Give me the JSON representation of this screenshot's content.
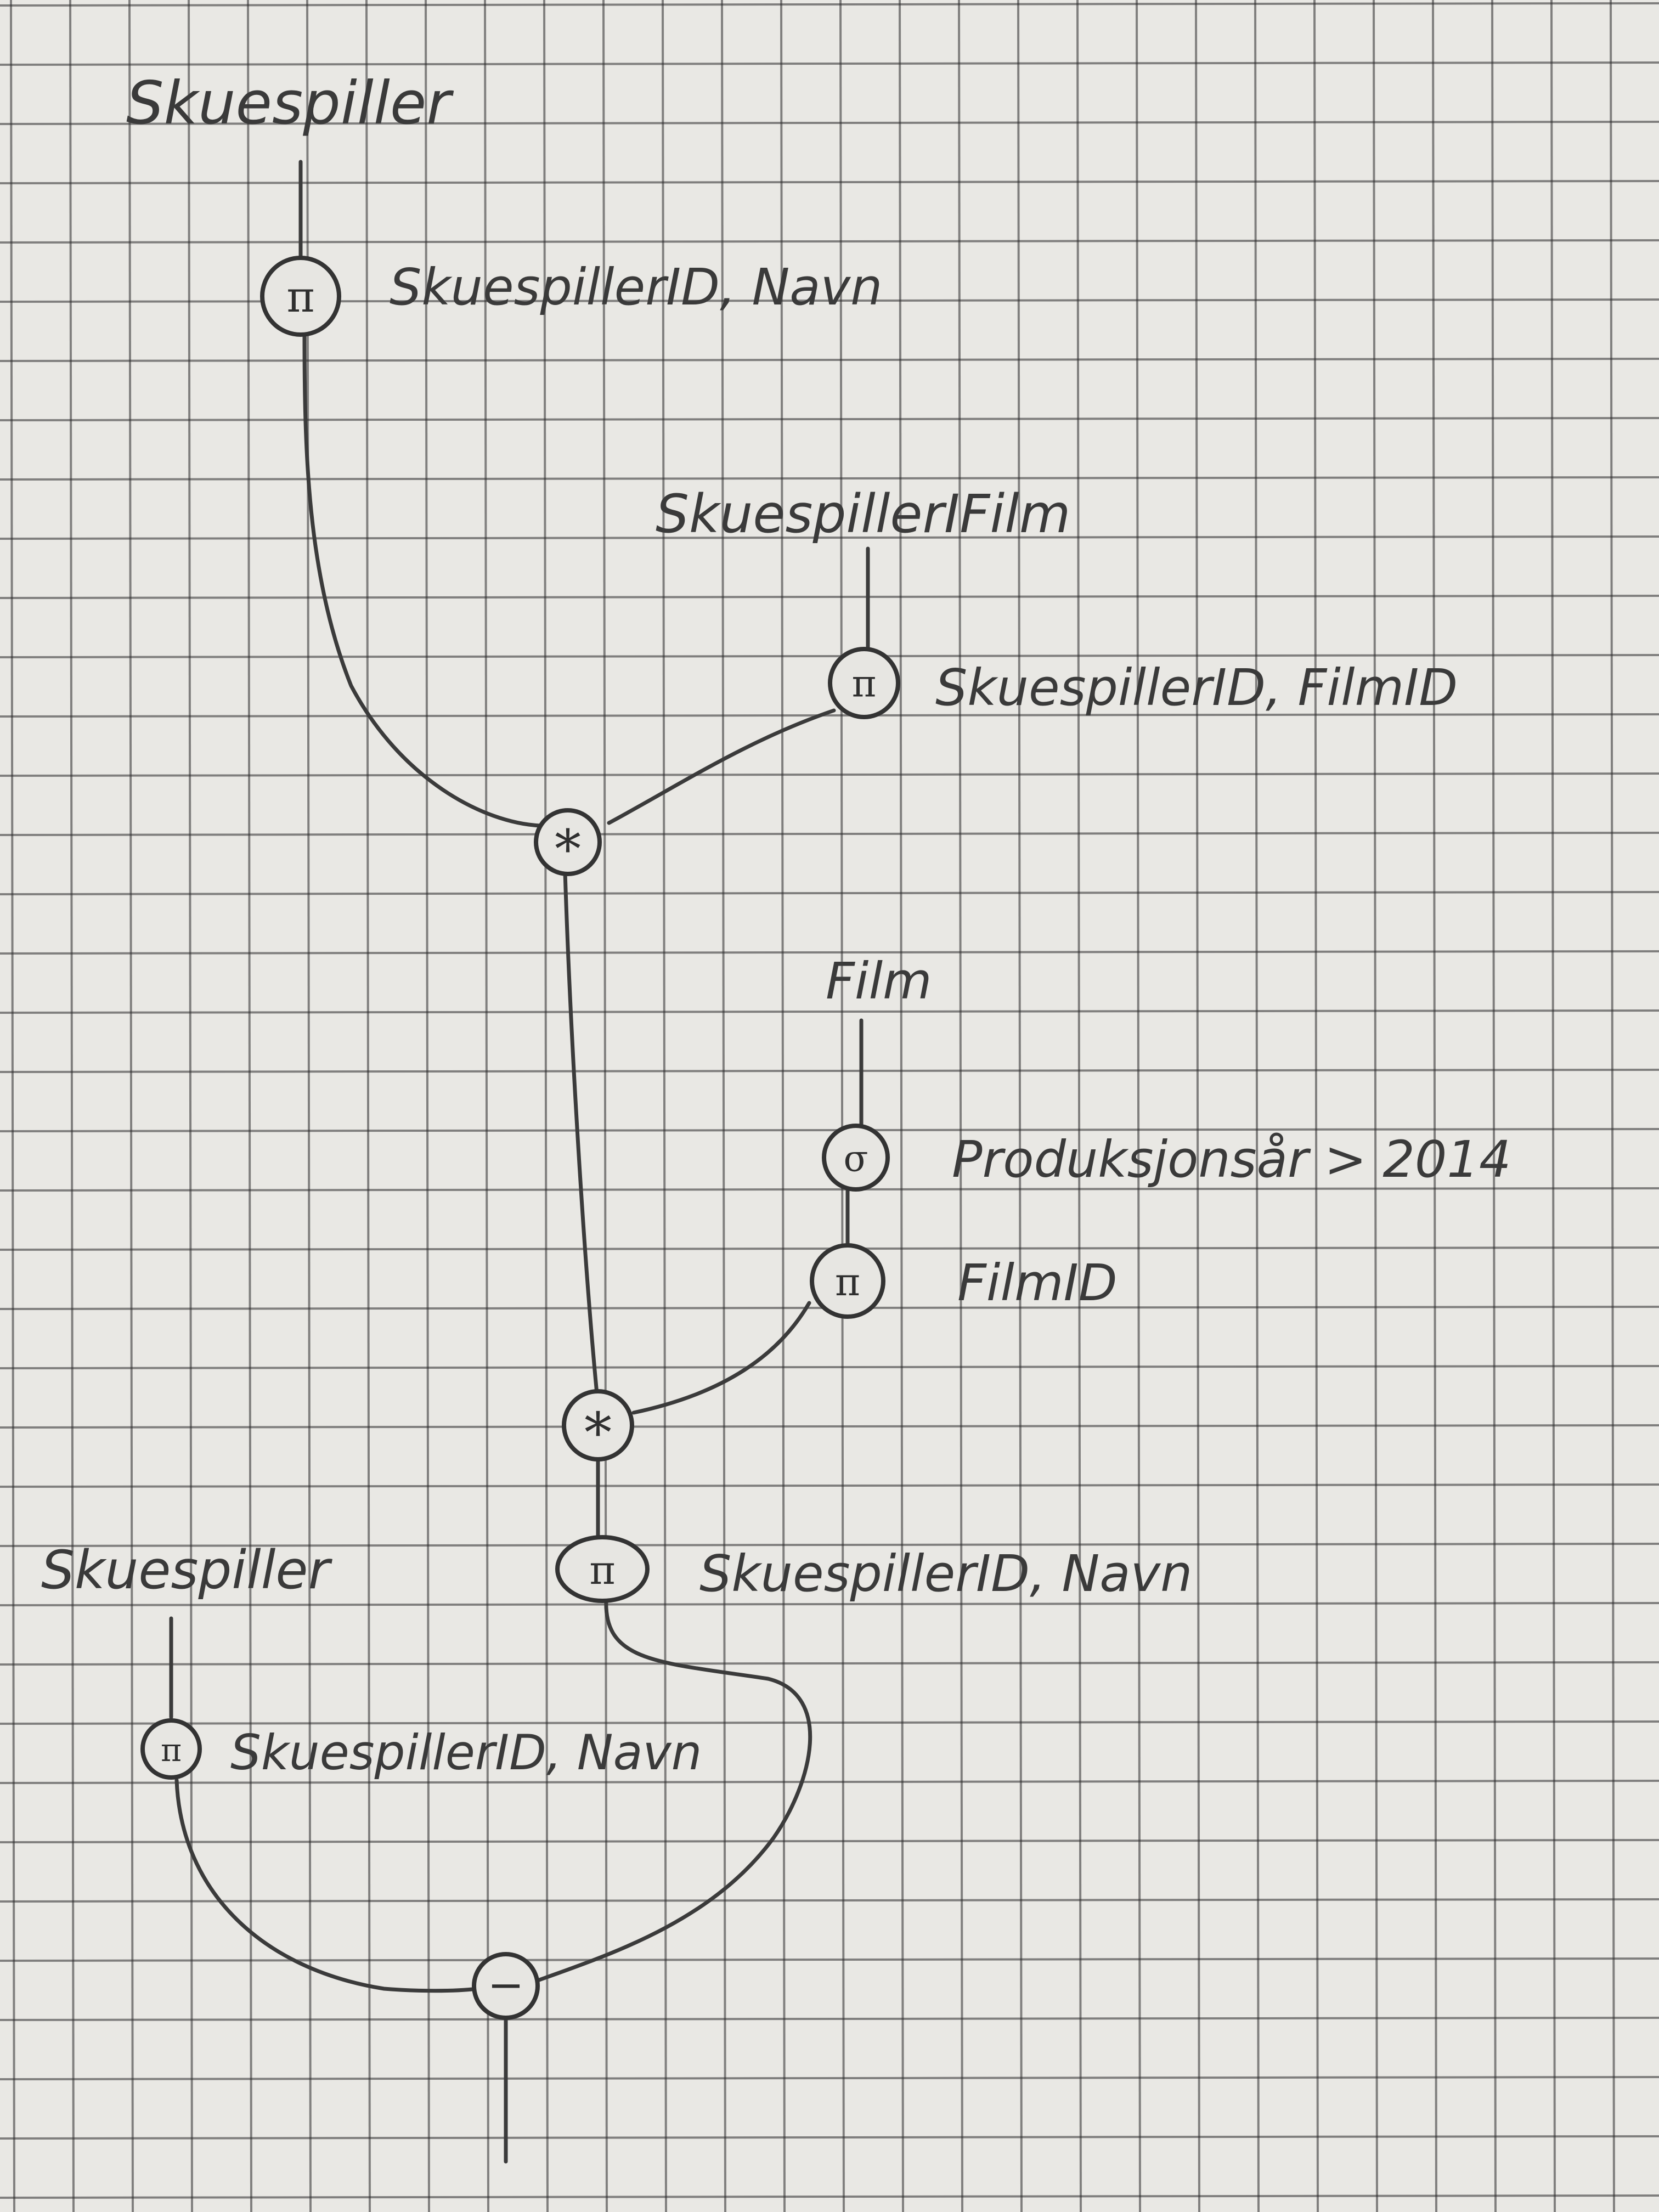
{
  "colors": {
    "paper": "#e9e8e4",
    "grid": "#2b2b2b",
    "pencil": "#3a3a3a"
  },
  "relations": {
    "skuespiller_top": "Skuespiller",
    "skuespiller_i_film": "SkuespillerIFilm",
    "film": "Film",
    "skuespiller_bottom": "Skuespiller"
  },
  "operators": {
    "projection_1": {
      "symbol": "π",
      "attrs": "SkuespillerID, Navn"
    },
    "projection_2": {
      "symbol": "π",
      "attrs": "SkuespillerID, FilmID"
    },
    "join_1": {
      "symbol": "*"
    },
    "selection_1": {
      "symbol": "σ",
      "condition": "Produksjonsår > 2014"
    },
    "projection_3": {
      "symbol": "π",
      "attrs": "FilmID"
    },
    "join_2": {
      "symbol": "*"
    },
    "projection_4": {
      "symbol": "π",
      "attrs": "SkuespillerID, Navn"
    },
    "projection_5": {
      "symbol": "π",
      "attrs": "SkuespillerID, Navn"
    },
    "difference_1": {
      "symbol": "−"
    }
  }
}
